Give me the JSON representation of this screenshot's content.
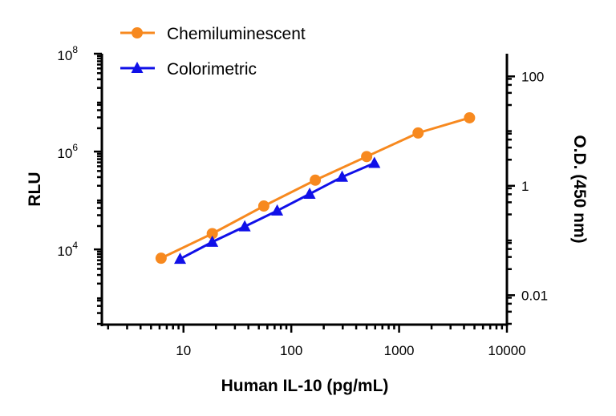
{
  "chart_data": {
    "type": "line",
    "title": "",
    "xlabel": "Human IL-10 (pg/mL)",
    "ylabel": "RLU",
    "y2label": "O.D. (450 nm)",
    "xscale": "log",
    "yscale": "log",
    "y2scale": "log",
    "xlim": [
      1.75,
      10000
    ],
    "ylim": [
      290,
      100000000
    ],
    "y2lim": [
      0.0029,
      260
    ],
    "xticks": [
      "10",
      "100",
      "1000",
      "10000"
    ],
    "yticks": [
      {
        "base": "10",
        "exp": "4"
      },
      {
        "base": "10",
        "exp": "6"
      },
      {
        "base": "10",
        "exp": "8"
      }
    ],
    "y2ticks": [
      "0.01",
      "1",
      "100"
    ],
    "grid": false,
    "legend": "top-left",
    "series": [
      {
        "name": "Chemiluminescent",
        "axis": "left",
        "color": "#F7891F",
        "marker": "circle",
        "x": [
          6.2,
          18.5,
          55.6,
          167,
          500,
          1500,
          4500
        ],
        "y": [
          6600,
          21000,
          77000,
          260000,
          790000,
          2400000,
          4900000
        ]
      },
      {
        "name": "Colorimetric",
        "axis": "right",
        "color": "#1010E8",
        "marker": "triangle",
        "x": [
          9.3,
          18.5,
          37,
          74,
          148,
          296,
          590
        ],
        "y": [
          0.046,
          0.094,
          0.18,
          0.35,
          0.71,
          1.45,
          2.6
        ]
      }
    ]
  }
}
